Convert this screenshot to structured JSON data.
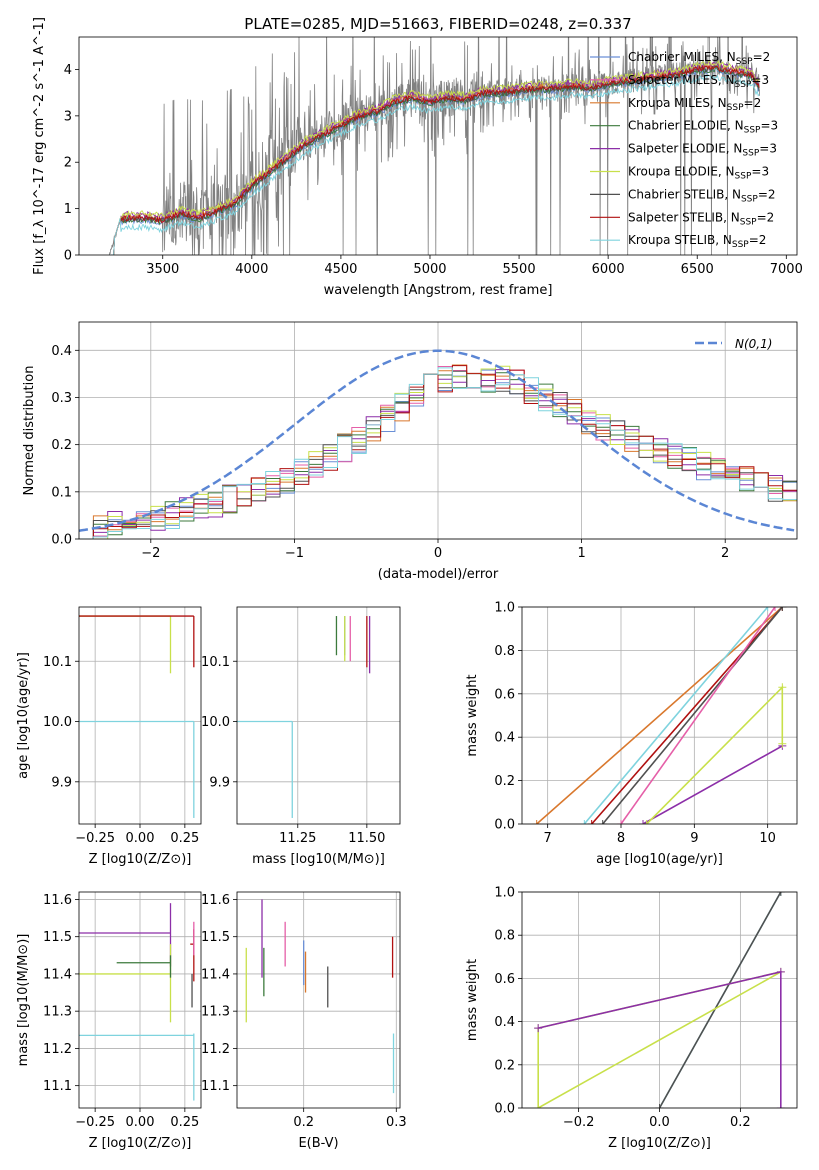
{
  "figure_title": "PLATE=0285, MJD=51663, FIBERID=0248, z=0.337",
  "colors": {
    "Chabrier MILES": "#6a8fd6",
    "Salpeter MILES": "#e55fa8",
    "Kroupa MILES": "#d9782d",
    "Chabrier ELODIE": "#3c7a3c",
    "Salpeter ELODIE": "#8c2fa8",
    "Kroupa ELODIE": "#c8e04a",
    "Chabrier STELIB": "#505050",
    "Salpeter STELIB": "#b01010",
    "Kroupa STELIB": "#7fd3de",
    "data": "#808080",
    "normal": "#5b86d4"
  },
  "chart_data": [
    {
      "id": "spectrum",
      "type": "line",
      "xlabel": "wavelength [Angstrom, rest frame]",
      "ylabel": "Flux [f_λ 10^-17 erg cm^-2 s^-1 A^-1]",
      "xlim": [
        3030,
        7060
      ],
      "ylim": [
        0,
        4.7
      ],
      "xticks": [
        3500,
        4000,
        4500,
        5000,
        5500,
        6000,
        6500,
        7000
      ],
      "yticks": [
        0,
        1,
        2,
        3,
        4
      ],
      "grid": false,
      "legend_position": "top-right",
      "continuum": {
        "x": [
          3200,
          3260,
          3300,
          3400,
          3500,
          3600,
          3700,
          3800,
          3900,
          4000,
          4100,
          4200,
          4300,
          4400,
          4500,
          4600,
          4700,
          4800,
          4900,
          5000,
          5100,
          5200,
          5300,
          5400,
          5500,
          5600,
          5700,
          5800,
          5900,
          6000,
          6100,
          6200,
          6300,
          6400,
          6500,
          6600,
          6700,
          6800,
          6850
        ],
        "y": [
          0.0,
          0.75,
          0.8,
          0.8,
          0.75,
          0.9,
          0.8,
          0.95,
          1.1,
          1.5,
          1.8,
          2.1,
          2.4,
          2.6,
          2.8,
          3.0,
          3.1,
          3.3,
          3.4,
          3.3,
          3.4,
          3.35,
          3.5,
          3.5,
          3.55,
          3.6,
          3.6,
          3.65,
          3.6,
          3.7,
          3.75,
          3.8,
          3.85,
          3.9,
          4.0,
          4.05,
          3.95,
          3.9,
          3.6
        ]
      },
      "series": [
        {
          "name": "Chabrier MILES, N_SSP=2",
          "offset": -0.06
        },
        {
          "name": "Salpeter MILES, N_SSP=3",
          "offset": 0.02
        },
        {
          "name": "Kroupa MILES, N_SSP=2",
          "offset": 0.04
        },
        {
          "name": "Chabrier ELODIE, N_SSP=3",
          "offset": -0.04
        },
        {
          "name": "Salpeter ELODIE, N_SSP=3",
          "offset": 0.08
        },
        {
          "name": "Kroupa ELODIE, N_SSP=3",
          "offset": 0.1
        },
        {
          "name": "Chabrier STELIB, N_SSP=2",
          "offset": -0.02
        },
        {
          "name": "Salpeter STELIB, N_SSP=2",
          "offset": 0.0
        },
        {
          "name": "Kroupa STELIB, N_SSP=2",
          "offset": -0.2
        }
      ]
    },
    {
      "id": "residuals",
      "type": "line",
      "xlabel": "(data-model)/error",
      "ylabel": "Normed distribution",
      "xlim": [
        -2.5,
        2.5
      ],
      "ylim": [
        0,
        0.46
      ],
      "xticks": [
        -2,
        -1,
        0,
        1,
        2
      ],
      "yticks": [
        0.0,
        0.1,
        0.2,
        0.3,
        0.4
      ],
      "grid": true,
      "legend_position": "top-right",
      "legend": "N(0,1)",
      "normal": {
        "mean": 0,
        "sigma": 1
      },
      "histogram_envelope": {
        "x": [
          -2.5,
          -2.0,
          -1.5,
          -1.0,
          -0.5,
          0.0,
          0.5,
          1.0,
          1.5,
          2.0,
          2.5
        ],
        "y": [
          0.02,
          0.04,
          0.08,
          0.13,
          0.22,
          0.34,
          0.34,
          0.26,
          0.19,
          0.14,
          0.09
        ]
      }
    },
    {
      "id": "age-vs-Z",
      "type": "line",
      "xlabel": "Z [log10(Z/Z⊙)]",
      "ylabel": "age [log10(age/yr)]",
      "xlim": [
        -0.34,
        0.34
      ],
      "ylim": [
        9.83,
        10.19
      ],
      "xticks": [
        -0.25,
        0.0,
        0.25
      ],
      "yticks": [
        9.9,
        10.0,
        10.1
      ],
      "grid": true,
      "series": [
        {
          "name": "Kroupa STELIB",
          "h": [
            -0.34,
            0.3,
            10.0
          ],
          "v": [
            0.3,
            10.0,
            9.84
          ]
        },
        {
          "name": "Kroupa ELODIE",
          "h": [
            -0.34,
            0.17,
            10.175
          ],
          "v": [
            0.17,
            10.175,
            10.08
          ]
        },
        {
          "name": "Salpeter STELIB",
          "h": [
            -0.34,
            0.3,
            10.175
          ],
          "v": [
            0.3,
            10.175,
            10.09
          ]
        }
      ]
    },
    {
      "id": "age-vs-mass",
      "type": "line",
      "xlabel": "mass [log10(M/M⊙)]",
      "ylabel": "",
      "xlim": [
        11.03,
        11.62
      ],
      "ylim": [
        9.83,
        10.19
      ],
      "xticks": [
        11.25,
        11.5
      ],
      "yticks": [
        9.9,
        10.0,
        10.1
      ],
      "grid": true,
      "series": [
        {
          "name": "Kroupa STELIB",
          "h": [
            11.03,
            11.23,
            10.0
          ],
          "v": [
            11.23,
            10.0,
            9.84
          ]
        },
        {
          "name": "Chabrier MILES",
          "v": [
            11.42,
            10.175,
            10.11
          ]
        },
        {
          "name": "Chabrier ELODIE",
          "v": [
            11.39,
            10.175,
            10.11
          ]
        },
        {
          "name": "Salpeter ELODIE",
          "v": [
            11.51,
            10.175,
            10.08
          ]
        },
        {
          "name": "Salpeter STELIB",
          "v": [
            11.5,
            10.175,
            10.09
          ]
        },
        {
          "name": "Kroupa ELODIE",
          "v": [
            11.42,
            10.175,
            10.1
          ]
        },
        {
          "name": "Salpeter MILES",
          "v": [
            11.44,
            10.175,
            10.1
          ]
        }
      ]
    },
    {
      "id": "mass-weight-vs-age",
      "type": "line",
      "xlabel": "age [log10(age/yr)]",
      "ylabel": "mass weight",
      "xlim": [
        6.65,
        10.4
      ],
      "ylim": [
        0,
        1.0
      ],
      "xticks": [
        7,
        8,
        9,
        10
      ],
      "yticks": [
        0.0,
        0.2,
        0.4,
        0.6,
        0.8,
        1.0
      ],
      "grid": true,
      "series": [
        {
          "name": "Kroupa MILES",
          "x": [
            6.85,
            10.2
          ],
          "y": [
            0.0,
            1.0
          ]
        },
        {
          "name": "Kroupa STELIB",
          "x": [
            7.5,
            10.0
          ],
          "y": [
            0.0,
            1.0
          ]
        },
        {
          "name": "Salpeter STELIB",
          "x": [
            7.6,
            10.2
          ],
          "y": [
            0.0,
            1.0
          ]
        },
        {
          "name": "Chabrier STELIB",
          "x": [
            7.75,
            10.2
          ],
          "y": [
            0.0,
            1.0
          ]
        },
        {
          "name": "Salpeter MILES",
          "x": [
            8.0,
            10.1
          ],
          "y": [
            0.0,
            1.0
          ]
        },
        {
          "name": "Salpeter ELODIE",
          "x": [
            8.3,
            10.2
          ],
          "y": [
            0.0,
            0.36
          ]
        },
        {
          "name": "Kroupa ELODIE",
          "x": [
            8.35,
            10.2,
            10.2
          ],
          "y": [
            0.0,
            0.63,
            0.37
          ]
        }
      ]
    },
    {
      "id": "mass-vs-Z",
      "type": "line",
      "xlabel": "Z [log10(Z/Z⊙)]",
      "ylabel": "mass [log10(M/M⊙)]",
      "xlim": [
        -0.34,
        0.34
      ],
      "ylim": [
        11.04,
        11.62
      ],
      "xticks": [
        -0.25,
        0.0,
        0.25
      ],
      "yticks": [
        11.1,
        11.2,
        11.3,
        11.4,
        11.5,
        11.6
      ],
      "grid": true,
      "series": [
        {
          "name": "Salpeter ELODIE",
          "h": [
            -0.34,
            0.17,
            11.51
          ],
          "v": [
            0.17,
            11.59,
            11.42
          ]
        },
        {
          "name": "Kroupa ELODIE",
          "h": [
            -0.34,
            0.17,
            11.4
          ],
          "v": [
            0.17,
            11.48,
            11.27
          ]
        },
        {
          "name": "Chabrier ELODIE",
          "h": [
            -0.13,
            0.17,
            11.43
          ],
          "v": [
            0.17,
            11.45,
            11.39
          ]
        },
        {
          "name": "Kroupa STELIB",
          "h": [
            -0.34,
            0.3,
            11.235
          ],
          "v": [
            0.3,
            11.24,
            11.06
          ]
        },
        {
          "name": "Salpeter STELIB",
          "h": [
            0.28,
            0.3,
            11.48
          ],
          "v": [
            0.3,
            11.52,
            11.38
          ]
        },
        {
          "name": "Chabrier STELIB",
          "v": [
            0.29,
            11.4,
            11.31
          ]
        },
        {
          "name": "Salpeter MILES",
          "v": [
            0.3,
            11.54,
            11.45
          ]
        }
      ]
    },
    {
      "id": "mass-vs-ebv",
      "type": "line",
      "xlabel": "E(B-V)",
      "ylabel": "",
      "xlim": [
        0.128,
        0.304
      ],
      "ylim": [
        11.04,
        11.62
      ],
      "xticks": [
        0.2,
        0.3
      ],
      "yticks": [
        11.1,
        11.2,
        11.3,
        11.4,
        11.5,
        11.6
      ],
      "grid": true,
      "series": [
        {
          "name": "Kroupa ELODIE",
          "v": [
            0.138,
            11.47,
            11.27
          ]
        },
        {
          "name": "Salpeter ELODIE",
          "v": [
            0.155,
            11.6,
            11.39
          ]
        },
        {
          "name": "Chabrier ELODIE",
          "v": [
            0.157,
            11.47,
            11.34
          ]
        },
        {
          "name": "Salpeter MILES",
          "v": [
            0.18,
            11.54,
            11.42
          ]
        },
        {
          "name": "Chabrier MILES",
          "v": [
            0.2,
            11.49,
            11.37
          ]
        },
        {
          "name": "Kroupa MILES",
          "v": [
            0.202,
            11.46,
            11.35
          ]
        },
        {
          "name": "Chabrier STELIB",
          "v": [
            0.226,
            11.42,
            11.31
          ]
        },
        {
          "name": "Salpeter STELIB",
          "v": [
            0.296,
            11.5,
            11.39
          ]
        },
        {
          "name": "Kroupa STELIB",
          "v": [
            0.297,
            11.24,
            11.08
          ]
        }
      ]
    },
    {
      "id": "mass-weight-vs-Z",
      "type": "line",
      "xlabel": "Z [log10(Z/Z⊙)]",
      "ylabel": "mass weight",
      "xlim": [
        -0.34,
        0.34
      ],
      "ylim": [
        0,
        1.0
      ],
      "xticks": [
        -0.2,
        0.0,
        0.2
      ],
      "yticks": [
        0.0,
        0.2,
        0.4,
        0.6,
        0.8,
        1.0
      ],
      "grid": true,
      "series": [
        {
          "name": "Kroupa STELIB",
          "x": [
            0.0,
            0.3
          ],
          "y": [
            0.0,
            1.0
          ]
        },
        {
          "name": "Chabrier STELIB",
          "x": [
            0.0,
            0.3
          ],
          "y": [
            0.0,
            1.0
          ]
        },
        {
          "name": "Kroupa ELODIE",
          "x": [
            -0.3,
            -0.3,
            0.3,
            -0.3
          ],
          "y": [
            0.0,
            0.37,
            0.63,
            0.0
          ]
        },
        {
          "name": "Salpeter ELODIE",
          "x": [
            -0.3,
            0.3,
            0.3
          ],
          "y": [
            0.37,
            0.63,
            0.0
          ]
        }
      ]
    }
  ]
}
